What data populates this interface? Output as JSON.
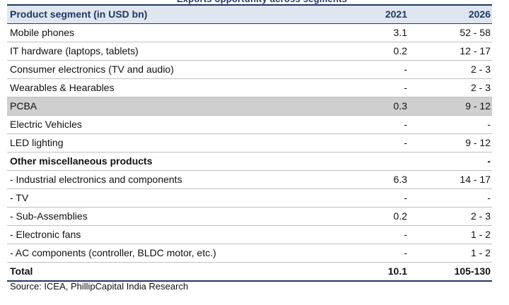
{
  "table": {
    "headers": [
      "Product segment (in USD bn)",
      "2021",
      "2026"
    ],
    "rows": [
      {
        "label": "Mobile phones",
        "v2021": "3.1",
        "v2026": "52 - 58",
        "style": ""
      },
      {
        "label": "IT hardware (laptops, tablets)",
        "v2021": "0.2",
        "v2026": "12 - 17",
        "style": ""
      },
      {
        "label": "Consumer electronics (TV and audio)",
        "v2021": "-",
        "v2026": "2 - 3",
        "style": ""
      },
      {
        "label": "Wearables & Hearables",
        "v2021": "-",
        "v2026": "2 - 3",
        "style": ""
      },
      {
        "label": "PCBA",
        "v2021": "0.3",
        "v2026": "9 - 12",
        "style": "shade"
      },
      {
        "label": "Electric Vehicles",
        "v2021": "-",
        "v2026": "-",
        "style": ""
      },
      {
        "label": "LED lighting",
        "v2021": "-",
        "v2026": "9 - 12",
        "style": ""
      },
      {
        "label": "Other miscellaneous products",
        "v2021": "",
        "v2026": "-",
        "style": "bold"
      },
      {
        "label": "-  Industrial electronics and components",
        "v2021": "6.3",
        "v2026": "14 - 17",
        "style": ""
      },
      {
        "label": "-  TV",
        "v2021": "-",
        "v2026": "-",
        "style": ""
      },
      {
        "label": "-  Sub-Assemblies",
        "v2021": "0.2",
        "v2026": "2 - 3",
        "style": ""
      },
      {
        "label": "-  Electronic fans",
        "v2021": "-",
        "v2026": "1 - 2",
        "style": ""
      },
      {
        "label": "-  AC components (controller, BLDC motor, etc.)",
        "v2021": "-",
        "v2026": "1 - 2",
        "style": ""
      },
      {
        "label": "Total",
        "v2021": "10.1",
        "v2026": "105-130",
        "style": "total"
      }
    ]
  },
  "source": "Source: ICEA, PhillipCapital India Research",
  "colors": {
    "header_text": "#1f3864",
    "header_bg": "#dfe6f0",
    "highlight_row": "#cfcfcf"
  }
}
